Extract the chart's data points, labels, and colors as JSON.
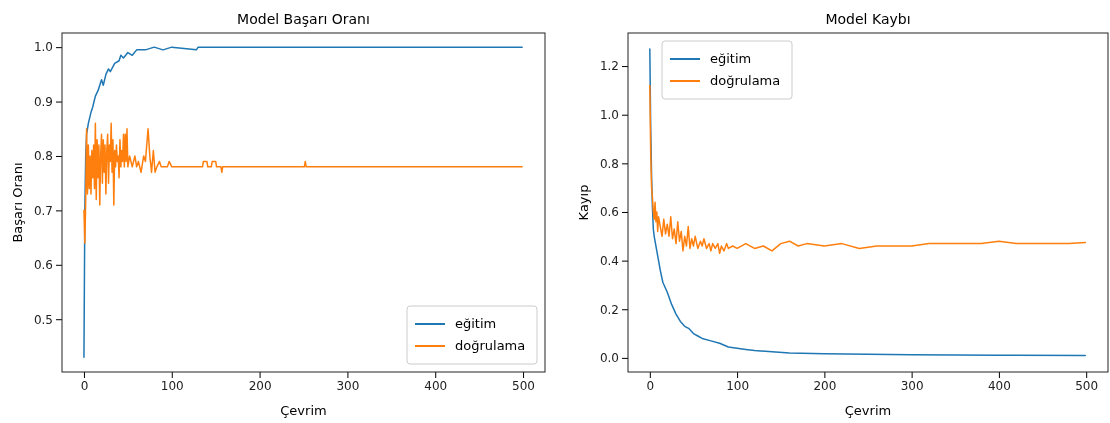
{
  "chart_data": [
    {
      "type": "line",
      "title": "Model Başarı Oranı",
      "xlabel": "Çevrim",
      "ylabel": "Başarı Oranı",
      "xlim": [
        -25,
        525
      ],
      "xticks": [
        0,
        100,
        200,
        300,
        400,
        500
      ],
      "ylim": [
        0.403,
        1.026
      ],
      "yticks": [
        {
          "value": 0.5,
          "label": "0.5"
        },
        {
          "value": 0.6,
          "label": "0.6"
        },
        {
          "value": 0.7,
          "label": "0.7"
        },
        {
          "value": 0.8,
          "label": "0.8"
        },
        {
          "value": 0.9,
          "label": "0.9"
        },
        {
          "value": 1.0,
          "label": "1.0"
        }
      ],
      "grid": false,
      "legend": "bottom right",
      "series": [
        {
          "name": "eğitim",
          "color": "#1f77b4",
          "x": [
            0,
            1,
            2,
            3,
            5,
            8,
            10,
            13,
            16,
            20,
            22,
            25,
            28,
            30,
            35,
            40,
            42,
            45,
            50,
            55,
            60,
            70,
            80,
            90,
            100,
            128,
            130,
            499
          ],
          "values": [
            0.43,
            0.7,
            0.8,
            0.84,
            0.86,
            0.88,
            0.89,
            0.91,
            0.92,
            0.94,
            0.93,
            0.95,
            0.96,
            0.955,
            0.97,
            0.975,
            0.985,
            0.98,
            0.99,
            0.985,
            0.995,
            0.995,
            1.0,
            0.995,
            1.0,
            0.995,
            1.0,
            1.0
          ]
        },
        {
          "name": "doğrulama",
          "color": "#ff7f0e",
          "x": [
            0,
            1,
            2,
            3,
            4,
            5,
            6,
            7,
            8,
            9,
            10,
            11,
            12,
            13,
            14,
            15,
            16,
            17,
            18,
            19,
            20,
            21,
            22,
            23,
            24,
            25,
            26,
            27,
            28,
            29,
            30,
            31,
            32,
            33,
            34,
            35,
            36,
            37,
            38,
            39,
            40,
            41,
            42,
            43,
            44,
            45,
            46,
            47,
            48,
            49,
            50,
            52,
            55,
            58,
            60,
            62,
            65,
            68,
            70,
            73,
            75,
            77,
            79,
            81,
            83,
            86,
            88,
            95,
            97,
            100,
            135,
            136,
            140,
            141,
            145,
            146,
            150,
            151,
            156,
            157,
            158,
            251,
            252,
            253,
            499
          ],
          "values": [
            0.7,
            0.64,
            0.72,
            0.85,
            0.73,
            0.82,
            0.74,
            0.8,
            0.73,
            0.81,
            0.76,
            0.82,
            0.74,
            0.86,
            0.72,
            0.83,
            0.76,
            0.82,
            0.71,
            0.8,
            0.84,
            0.75,
            0.83,
            0.77,
            0.82,
            0.73,
            0.81,
            0.84,
            0.75,
            0.82,
            0.79,
            0.86,
            0.77,
            0.83,
            0.71,
            0.81,
            0.78,
            0.82,
            0.79,
            0.8,
            0.76,
            0.83,
            0.78,
            0.81,
            0.79,
            0.84,
            0.78,
            0.84,
            0.79,
            0.85,
            0.78,
            0.8,
            0.78,
            0.8,
            0.78,
            0.79,
            0.77,
            0.8,
            0.79,
            0.85,
            0.8,
            0.77,
            0.81,
            0.77,
            0.78,
            0.79,
            0.78,
            0.78,
            0.79,
            0.78,
            0.78,
            0.79,
            0.79,
            0.78,
            0.78,
            0.79,
            0.79,
            0.78,
            0.78,
            0.77,
            0.78,
            0.78,
            0.79,
            0.78,
            0.78
          ]
        }
      ]
    },
    {
      "type": "line",
      "title": "Model Kaybı",
      "xlabel": "Çevrim",
      "ylabel": "Kayıp",
      "xlim": [
        -25,
        525
      ],
      "xticks": [
        0,
        100,
        200,
        300,
        400,
        500
      ],
      "ylim": [
        -0.058,
        1.336
      ],
      "yticks": [
        {
          "value": 0,
          "label": "0.0"
        },
        {
          "value": 0.2,
          "label": "0.2"
        },
        {
          "value": 0.4,
          "label": "0.4"
        },
        {
          "value": 0.6,
          "label": "0.6"
        },
        {
          "value": 0.8,
          "label": "0.8"
        },
        {
          "value": 1.0,
          "label": "1.0"
        },
        {
          "value": 1.2,
          "label": "1.2"
        }
      ],
      "grid": false,
      "legend": "top left",
      "series": [
        {
          "name": "eğitim",
          "color": "#1f77b4",
          "x": [
            0,
            1,
            2,
            3,
            4,
            5,
            8,
            10,
            12,
            15,
            20,
            25,
            30,
            35,
            40,
            45,
            50,
            55,
            60,
            70,
            80,
            90,
            100,
            110,
            120,
            140,
            160,
            200,
            250,
            300,
            400,
            499
          ],
          "values": [
            1.27,
            0.95,
            0.75,
            0.62,
            0.53,
            0.5,
            0.44,
            0.4,
            0.36,
            0.31,
            0.27,
            0.22,
            0.18,
            0.15,
            0.13,
            0.12,
            0.1,
            0.09,
            0.08,
            0.07,
            0.06,
            0.045,
            0.04,
            0.035,
            0.03,
            0.025,
            0.02,
            0.017,
            0.015,
            0.013,
            0.011,
            0.01
          ]
        },
        {
          "name": "doğrulama",
          "color": "#ff7f0e",
          "x": [
            0,
            1,
            2,
            3,
            4,
            5,
            6,
            7,
            8,
            9,
            10,
            12,
            14,
            16,
            18,
            20,
            22,
            24,
            26,
            28,
            30,
            32,
            34,
            36,
            38,
            40,
            42,
            44,
            46,
            48,
            50,
            52,
            55,
            58,
            60,
            62,
            65,
            68,
            70,
            72,
            75,
            78,
            80,
            82,
            85,
            88,
            90,
            95,
            100,
            110,
            120,
            130,
            140,
            150,
            160,
            170,
            180,
            200,
            220,
            240,
            260,
            280,
            300,
            320,
            350,
            380,
            400,
            420,
            450,
            480,
            499
          ],
          "values": [
            1.12,
            0.85,
            0.7,
            0.66,
            0.6,
            0.57,
            0.64,
            0.56,
            0.6,
            0.52,
            0.58,
            0.54,
            0.5,
            0.57,
            0.51,
            0.55,
            0.5,
            0.58,
            0.49,
            0.53,
            0.47,
            0.56,
            0.48,
            0.52,
            0.44,
            0.5,
            0.46,
            0.54,
            0.45,
            0.49,
            0.46,
            0.5,
            0.45,
            0.48,
            0.46,
            0.49,
            0.45,
            0.47,
            0.44,
            0.47,
            0.45,
            0.47,
            0.43,
            0.46,
            0.44,
            0.47,
            0.45,
            0.46,
            0.45,
            0.47,
            0.45,
            0.46,
            0.44,
            0.47,
            0.48,
            0.46,
            0.47,
            0.46,
            0.47,
            0.45,
            0.46,
            0.46,
            0.46,
            0.47,
            0.47,
            0.47,
            0.48,
            0.47,
            0.47,
            0.47,
            0.475
          ]
        }
      ]
    }
  ]
}
